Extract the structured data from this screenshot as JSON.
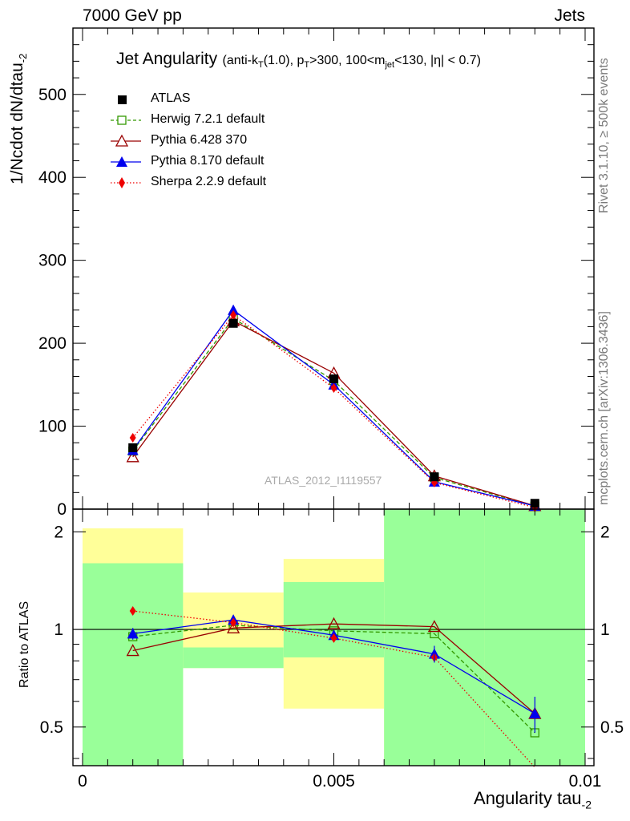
{
  "header": {
    "left": "7000 GeV pp",
    "right": "Jets"
  },
  "title": {
    "main": "Jet Angularity",
    "sub_pre": "(anti-k",
    "sub_kt": "T",
    "sub_mid": "(1.0), p",
    "sub_pt": "T",
    "sub_mid2": ">300, 100<m",
    "sub_jet": "jet",
    "sub_post": "<130, |η| < 0.7)"
  },
  "ylabel_main": "1/Ncdot dN/dtau",
  "ylabel_main_sub": "-2",
  "ylabel_ratio": "Ratio to ATLAS",
  "xlabel": "Angularity tau",
  "xlabel_sub": "-2",
  "side_text_1": "Rivet 3.1.10, ≥ 500k events",
  "side_text_2": "mcplots.cern.ch [arXiv:1306.3436]",
  "watermark": "ATLAS_2012_I1119557",
  "colors": {
    "atlas": "#000000",
    "herwig": "#339900",
    "pythia6": "#990000",
    "pythia8": "#0000ee",
    "sherpa": "#ee0000",
    "band_inner": "#99ff99",
    "band_outer": "#ffff99"
  },
  "chart_data": {
    "type": "line",
    "x": [
      0.001,
      0.003,
      0.005,
      0.007,
      0.009
    ],
    "x_bin_edges": [
      0.0,
      0.002,
      0.004,
      0.006,
      0.008,
      0.01
    ],
    "xlim": [
      0.0,
      0.01
    ],
    "x_ticks": [
      "0",
      "0.005",
      "0.01"
    ],
    "main": {
      "ylim": [
        0,
        580
      ],
      "y_ticks": [
        "0",
        "100",
        "200",
        "300",
        "400",
        "500"
      ],
      "series": [
        {
          "name": "ATLAS",
          "key": "atlas",
          "values": [
            74,
            224,
            157,
            39,
            7
          ]
        },
        {
          "name": "Herwig 7.2.1 default",
          "key": "herwig",
          "values": [
            70,
            230,
            155,
            38,
            3.5
          ]
        },
        {
          "name": "Pythia 6.428 370",
          "key": "pythia6",
          "values": [
            63,
            227,
            164,
            40,
            4
          ]
        },
        {
          "name": "Pythia 8.170 default",
          "key": "pythia8",
          "values": [
            71,
            240,
            150,
            33,
            3.8
          ]
        },
        {
          "name": "Sherpa 2.2.9 default",
          "key": "sherpa",
          "values": [
            86,
            234,
            146,
            32,
            2
          ]
        }
      ]
    },
    "ratio": {
      "ylim": [
        0.38,
        2.35
      ],
      "y_ticks": [
        "0.5",
        "1",
        "2"
      ],
      "band_inner": [
        [
          0.38,
          1.6
        ],
        [
          0.76,
          0.88
        ],
        [
          0.82,
          1.4
        ],
        [
          0.38,
          2.35
        ],
        [
          0.38,
          2.35
        ]
      ],
      "band_outer": [
        [
          0.38,
          2.05
        ],
        [
          0.76,
          1.3
        ],
        [
          0.57,
          1.65
        ],
        [
          0.38,
          2.35
        ],
        [
          0.38,
          2.35
        ]
      ],
      "series": [
        {
          "name": "Herwig 7.2.1 default",
          "key": "herwig",
          "values": [
            0.95,
            1.03,
            0.99,
            0.97,
            0.48
          ]
        },
        {
          "name": "Pythia 6.428 370",
          "key": "pythia6",
          "values": [
            0.86,
            1.01,
            1.04,
            1.02,
            0.55
          ]
        },
        {
          "name": "Pythia 8.170 default",
          "key": "pythia8",
          "values": [
            0.97,
            1.07,
            0.96,
            0.84,
            0.55
          ]
        },
        {
          "name": "Sherpa 2.2.9 default",
          "key": "sherpa",
          "values": [
            1.14,
            1.05,
            0.94,
            0.82,
            0.3
          ]
        }
      ]
    },
    "legend": [
      {
        "name": "ATLAS",
        "key": "atlas"
      },
      {
        "name": "Herwig 7.2.1 default",
        "key": "herwig"
      },
      {
        "name": "Pythia 6.428 370",
        "key": "pythia6"
      },
      {
        "name": "Pythia 8.170 default",
        "key": "pythia8"
      },
      {
        "name": "Sherpa 2.2.9 default",
        "key": "sherpa"
      }
    ],
    "legend_position": "top-left",
    "grid": false
  }
}
